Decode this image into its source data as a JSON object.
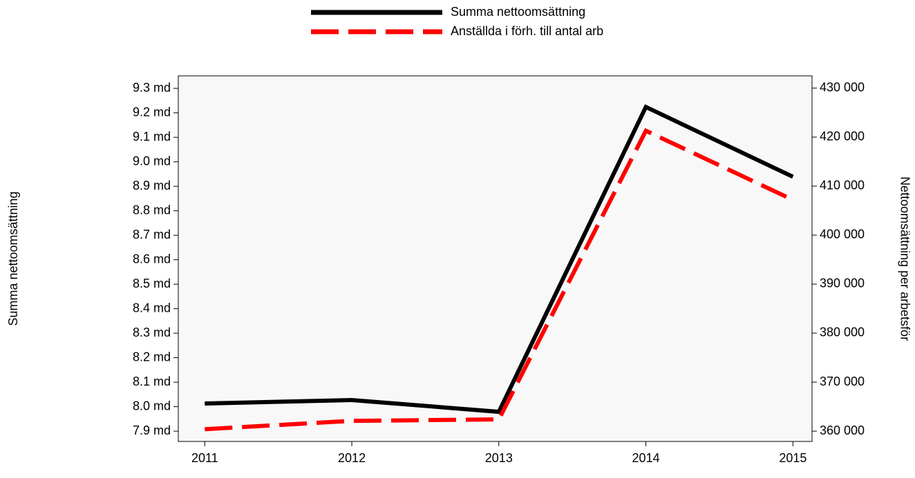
{
  "chart_data": {
    "type": "line",
    "x": [
      2011,
      2012,
      2013,
      2014,
      2015
    ],
    "xlim": [
      2010.82,
      2015.13
    ],
    "xticks": [
      2011,
      2012,
      2013,
      2014,
      2015
    ],
    "ylabel": "Summa nettoomsättning",
    "y2label": "Nettoomsättning per arbetsför",
    "ylim": [
      7.858,
      9.351
    ],
    "yticks": [
      {
        "value": 7.9,
        "label": "7.9 md"
      },
      {
        "value": 8.0,
        "label": "8.0 md"
      },
      {
        "value": 8.1,
        "label": "8.1 md"
      },
      {
        "value": 8.2,
        "label": "8.2 md"
      },
      {
        "value": 8.3,
        "label": "8.3 md"
      },
      {
        "value": 8.4,
        "label": "8.4 md"
      },
      {
        "value": 8.5,
        "label": "8.5 md"
      },
      {
        "value": 8.6,
        "label": "8.6 md"
      },
      {
        "value": 8.7,
        "label": "8.7 md"
      },
      {
        "value": 8.8,
        "label": "8.8 md"
      },
      {
        "value": 8.9,
        "label": "8.9 md"
      },
      {
        "value": 9.0,
        "label": "9.0 md"
      },
      {
        "value": 9.1,
        "label": "9.1 md"
      },
      {
        "value": 9.2,
        "label": "9.2 md"
      },
      {
        "value": 9.3,
        "label": "9.3 md"
      }
    ],
    "y2lim": [
      357900,
      432500
    ],
    "y2ticks": [
      {
        "value": 360000,
        "label": "360 000"
      },
      {
        "value": 370000,
        "label": "370 000"
      },
      {
        "value": 380000,
        "label": "380 000"
      },
      {
        "value": 390000,
        "label": "390 000"
      },
      {
        "value": 400000,
        "label": "400 000"
      },
      {
        "value": 410000,
        "label": "410 000"
      },
      {
        "value": 420000,
        "label": "420 000"
      },
      {
        "value": 430000,
        "label": "430 000"
      }
    ],
    "series": [
      {
        "name": "Summa nettoomsättning",
        "color": "#000000",
        "dash": false,
        "axis": "y",
        "values": [
          8.013,
          8.027,
          7.979,
          9.224,
          8.939
        ]
      },
      {
        "name": "Anställda i förh. till antal arb",
        "color": "#ff0000",
        "dash": true,
        "axis": "y2",
        "values": [
          360400,
          362100,
          362400,
          421300,
          407200
        ]
      }
    ]
  }
}
